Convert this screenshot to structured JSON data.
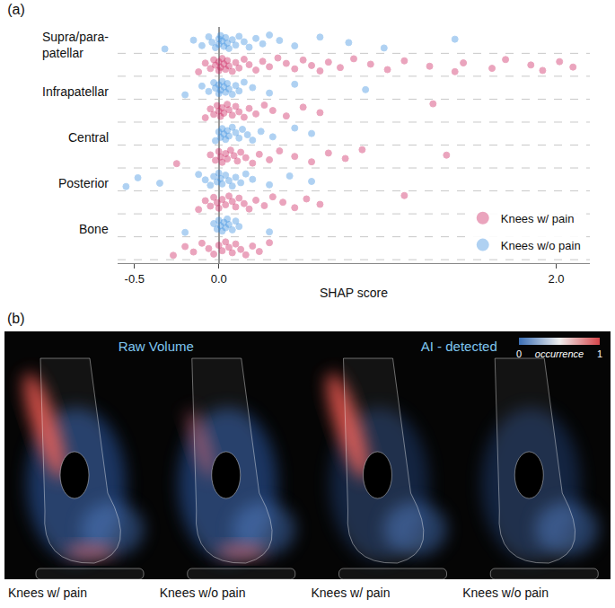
{
  "chart_data": {
    "type": "strip",
    "title": "(a)",
    "x_label": "SHAP score",
    "categories": [
      "Supra/para-patellar",
      "Infrapatellar",
      "Central",
      "Posterior",
      "Bone"
    ],
    "xlim": [
      -0.6,
      2.2
    ],
    "xticks": [
      -0.5,
      {
        "value": 0,
        "label": "0.0"
      },
      {
        "value": 2,
        "label": "2.0"
      }
    ],
    "grid": false,
    "legend": "bottom right",
    "marker": "circle",
    "series": [
      {
        "name": "Knees w/ pain",
        "color": "#cc1f5c",
        "values": [
          [
            -0.12,
            -0.08,
            -0.05,
            -0.03,
            -0.02,
            0,
            0,
            0.01,
            0.02,
            0.03,
            0.04,
            0.05,
            0.06,
            0.08,
            0.1,
            0.12,
            0.15,
            0.18,
            0.22,
            0.26,
            0.3,
            0.35,
            0.4,
            0.45,
            0.5,
            0.55,
            0.6,
            0.65,
            0.72,
            0.8,
            0.9,
            1.0,
            1.1,
            1.25,
            1.4,
            1.45,
            1.62,
            1.7,
            1.85,
            1.92,
            2.02,
            2.1
          ],
          [
            -0.08,
            -0.05,
            -0.03,
            -0.01,
            0,
            0.01,
            0.02,
            0.03,
            0.05,
            0.06,
            0.08,
            0.1,
            0.12,
            0.15,
            0.18,
            0.22,
            0.27,
            0.32,
            0.4,
            0.5,
            0.6,
            1.27
          ],
          [
            -0.25,
            -0.05,
            -0.02,
            0,
            0.01,
            0.02,
            0.04,
            0.05,
            0.07,
            0.09,
            0.11,
            0.13,
            0.16,
            0.2,
            0.24,
            0.3,
            0.36,
            0.45,
            0.55,
            0.65,
            0.75,
            0.85,
            1.35
          ],
          [
            -0.12,
            -0.08,
            -0.05,
            -0.03,
            -0.01,
            0,
            0.02,
            0.04,
            0.06,
            0.08,
            0.1,
            0.12,
            0.15,
            0.18,
            0.22,
            0.27,
            0.32,
            0.38,
            0.45,
            0.52,
            0.6,
            1.1
          ],
          [
            -0.27,
            -0.2,
            -0.15,
            -0.1,
            -0.06,
            -0.03,
            0,
            0.02,
            0.04,
            0.06,
            0.08,
            0.1,
            0.13,
            0.16,
            0.2,
            0.24,
            0.3
          ]
        ]
      },
      {
        "name": "Knees w/o pain",
        "color": "#3a8fe0",
        "values": [
          [
            -0.32,
            -0.15,
            -0.1,
            -0.06,
            -0.04,
            -0.02,
            0,
            0,
            0.01,
            0.02,
            0.03,
            0.04,
            0.05,
            0.06,
            0.08,
            0.1,
            0.12,
            0.15,
            0.18,
            0.22,
            0.26,
            0.3,
            0.36,
            0.45,
            0.6,
            0.77,
            0.98,
            1.4
          ],
          [
            -0.2,
            -0.1,
            -0.06,
            -0.03,
            -0.02,
            0,
            0,
            0.01,
            0.02,
            0.03,
            0.04,
            0.05,
            0.06,
            0.08,
            0.1,
            0.12,
            0.15,
            0.2,
            0.3,
            0.45,
            0.87
          ],
          [
            -0.02,
            0,
            0.01,
            0.02,
            0.03,
            0.04,
            0.05,
            0.06,
            0.08,
            0.1,
            0.12,
            0.14,
            0.17,
            0.2,
            0.25,
            0.32,
            0.45,
            0.55
          ],
          [
            -0.55,
            -0.48,
            -0.35,
            -0.12,
            -0.08,
            -0.05,
            -0.03,
            -0.01,
            0,
            0.01,
            0.02,
            0.04,
            0.06,
            0.08,
            0.1,
            0.13,
            0.16,
            0.2,
            0.3,
            0.42,
            0.55
          ],
          [
            -0.2,
            -0.03,
            -0.01,
            0,
            0.01,
            0.02,
            0.03,
            0.04,
            0.05,
            0.06,
            0.08,
            0.1,
            0.12,
            0.3
          ]
        ]
      }
    ]
  },
  "panel_b": {
    "label": "(b)",
    "colorbar": {
      "title": "occurrence",
      "range": [
        0,
        1
      ],
      "ticks": [
        0,
        1
      ]
    },
    "groups": [
      {
        "title": "Raw Volume",
        "panels": [
          "Knees w/ pain",
          "Knees w/o pain"
        ]
      },
      {
        "title": "AI - detected",
        "panels": [
          "Knees w/ pain",
          "Knees w/o pain"
        ]
      }
    ]
  }
}
